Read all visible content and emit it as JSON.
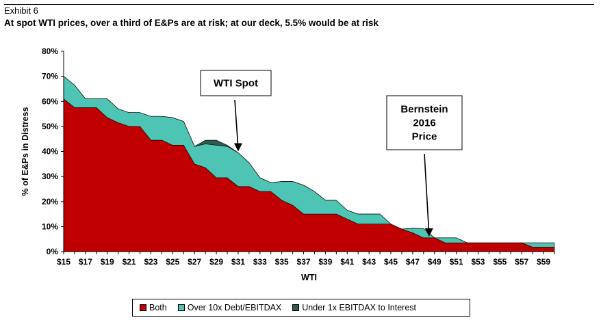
{
  "header": {
    "exhibit": "Exhibit 6",
    "title": "At spot WTI prices, over a third of E&Ps are at risk; at our deck, 5.5% would be at risk"
  },
  "colors": {
    "both": "#c00000",
    "over_debt": "#4dc4b4",
    "under_interest": "#305a52",
    "axis": "#000000"
  },
  "chart_data": {
    "type": "area",
    "stacked": true,
    "xlabel": "WTI",
    "ylabel": "% of E&Ps in Distress",
    "xlim": [
      15,
      60
    ],
    "ylim": [
      0,
      80
    ],
    "y_ticks": [
      "0%",
      "10%",
      "20%",
      "30%",
      "40%",
      "50%",
      "60%",
      "70%",
      "80%"
    ],
    "x_ticks": [
      "$15",
      "$17",
      "$19",
      "$21",
      "$23",
      "$25",
      "$27",
      "$29",
      "$31",
      "$33",
      "$35",
      "$37",
      "$39",
      "$41",
      "$43",
      "$45",
      "$47",
      "$49",
      "$51",
      "$53",
      "$55",
      "$57",
      "$59"
    ],
    "x": [
      15,
      16,
      17,
      18,
      19,
      20,
      21,
      22,
      23,
      24,
      25,
      26,
      27,
      28,
      29,
      30,
      31,
      32,
      33,
      34,
      35,
      36,
      37,
      38,
      39,
      40,
      41,
      42,
      43,
      44,
      45,
      46,
      47,
      48,
      49,
      50,
      51,
      52,
      53,
      54,
      55,
      56,
      57,
      58,
      59,
      60
    ],
    "series": [
      {
        "name": "Both",
        "key": "both",
        "values": [
          61,
          57.5,
          57.5,
          57.5,
          53.5,
          51.5,
          50,
          50,
          44.5,
          44.5,
          42.5,
          42.5,
          35,
          33.5,
          29.5,
          29.5,
          26,
          26,
          24,
          24,
          20.5,
          18.5,
          15,
          15,
          15,
          15,
          13,
          11,
          11,
          11,
          11,
          9,
          7.5,
          5.5,
          5.5,
          3.5,
          3.5,
          3.5,
          3.5,
          3.5,
          3.5,
          3.5,
          3.5,
          1.8,
          1.8,
          1.8
        ]
      },
      {
        "name": "Over 10x Debt/EBITDAX",
        "key": "over_debt",
        "values": [
          9,
          9,
          3.5,
          3.5,
          7.5,
          5.5,
          5.5,
          5.5,
          9.5,
          9.5,
          11,
          9.5,
          7,
          9.5,
          13,
          12.5,
          13.5,
          9.5,
          5.5,
          3.5,
          7.5,
          9.5,
          11.5,
          9,
          5.5,
          5.5,
          3.5,
          4,
          4,
          4,
          0,
          0,
          1.8,
          3.7,
          0,
          2,
          2,
          0,
          0,
          0,
          0,
          0,
          0,
          1.7,
          1.7,
          1.7
        ]
      },
      {
        "name": "Under 1x EBITDAX to Interest",
        "key": "under_interest",
        "values": [
          0,
          0,
          0,
          0,
          0,
          0,
          0,
          0,
          0,
          0,
          0,
          0,
          0,
          1.5,
          2,
          0.5,
          0,
          0,
          0,
          0,
          0,
          0,
          0,
          0,
          0,
          0,
          0,
          0,
          0,
          0,
          0,
          0,
          0,
          0,
          0,
          0,
          0,
          0,
          0,
          0,
          0,
          0,
          0,
          0,
          0,
          0
        ]
      }
    ],
    "annotations": [
      {
        "lines": [
          "WTI Spot"
        ],
        "points_to": {
          "x": 31,
          "y": 40
        }
      },
      {
        "lines": [
          "Bernstein",
          "2016",
          "Price"
        ],
        "points_to": {
          "x": 48.5,
          "y": 6
        }
      }
    ],
    "legend": {
      "position": "bottom",
      "items": [
        {
          "label": "Both",
          "key": "both"
        },
        {
          "label": "Over 10x Debt/EBITDAX",
          "key": "over_debt"
        },
        {
          "label": "Under 1x EBITDAX to Interest",
          "key": "under_interest"
        }
      ]
    }
  }
}
